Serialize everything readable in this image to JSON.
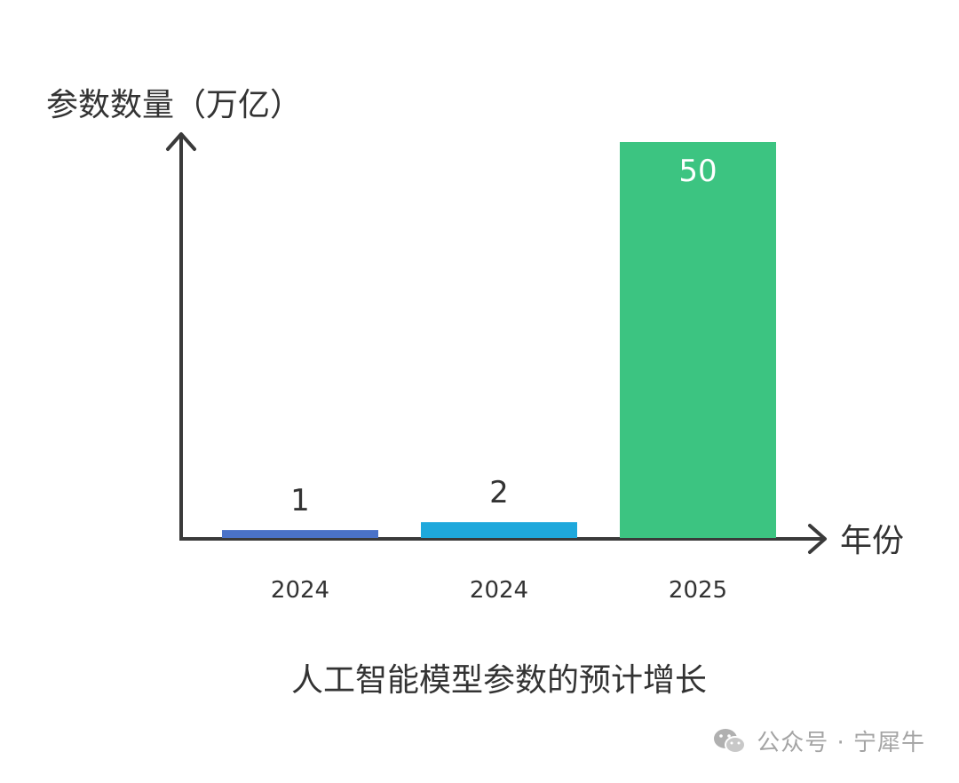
{
  "chart_data": {
    "type": "bar",
    "title": "人工智能模型参数的预计增长",
    "xlabel": "年份",
    "ylabel": "参数数量（万亿）",
    "categories": [
      "2024",
      "2024",
      "2025"
    ],
    "values": [
      1,
      2,
      50
    ],
    "value_labels": [
      "1",
      "2",
      "50"
    ],
    "colors": [
      "#4a72c8",
      "#1ea8dc",
      "#3cc481"
    ],
    "ylim": [
      0,
      50
    ],
    "grid": false,
    "legend": "none"
  },
  "watermark": {
    "text": "公众号 · 宁犀牛",
    "icon": "wechat-icon"
  }
}
